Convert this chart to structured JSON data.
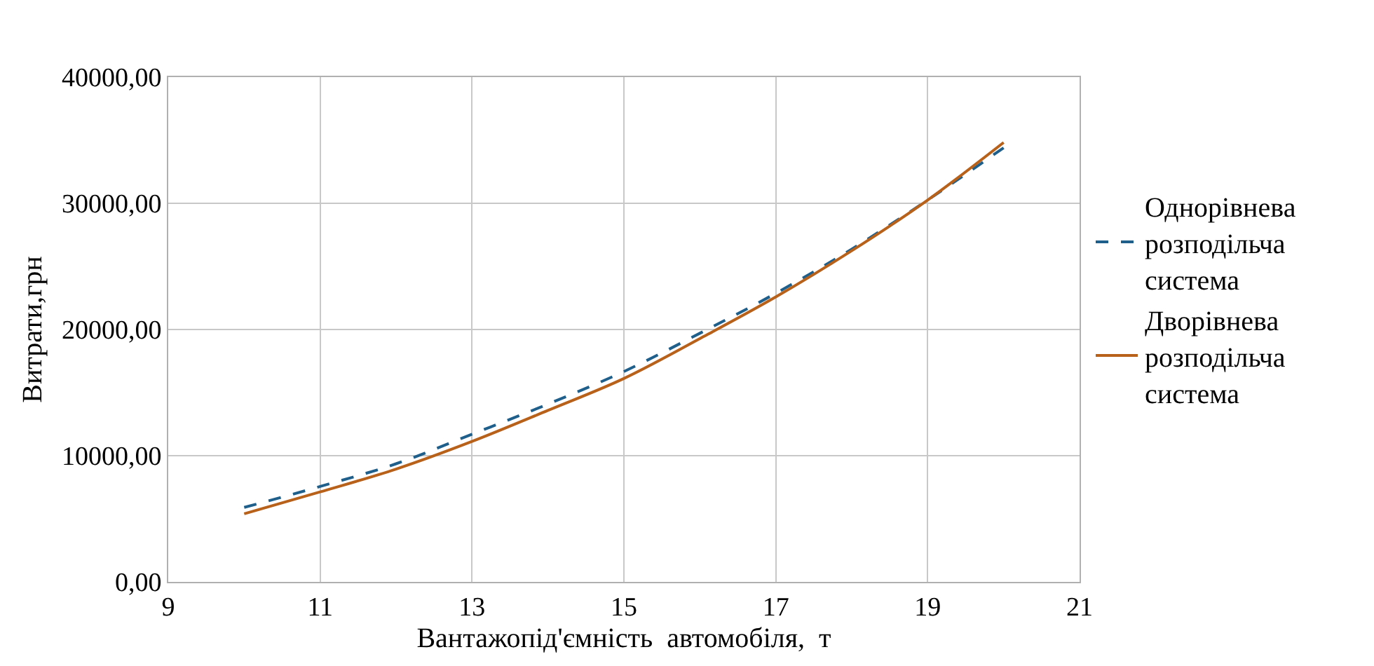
{
  "chart_data": {
    "type": "line",
    "xlabel": "Вантажопід'ємність  автомобіля,  т",
    "ylabel": "Витрати,грн",
    "x": [
      10,
      11,
      12,
      13,
      14,
      15,
      16,
      17,
      18,
      19,
      20
    ],
    "series": [
      {
        "name": "Однорівнева розподільча система",
        "color": "#1f5f8b",
        "line_style": "dashed",
        "values": [
          5900,
          7560,
          9360,
          11700,
          14090,
          16670,
          19700,
          22870,
          26370,
          30260,
          34400
        ]
      },
      {
        "name": "Дворівнева розподільча система",
        "color": "#b8611a",
        "line_style": "solid",
        "values": [
          5400,
          7130,
          8940,
          11130,
          13590,
          16120,
          19280,
          22580,
          26240,
          30260,
          34820
        ]
      }
    ],
    "xlim": [
      9,
      21
    ],
    "xticks": [
      9,
      11,
      13,
      15,
      17,
      19,
      21
    ],
    "ylim": [
      0,
      40000
    ],
    "yticks": [
      {
        "value": 0,
        "label": "0,00"
      },
      {
        "value": 10000,
        "label": "10000,00"
      },
      {
        "value": 20000,
        "label": "20000,00"
      },
      {
        "value": 30000,
        "label": "30000,00"
      },
      {
        "value": 40000,
        "label": "40000,00"
      }
    ],
    "grid": true,
    "legend": "right",
    "marker": "none"
  }
}
